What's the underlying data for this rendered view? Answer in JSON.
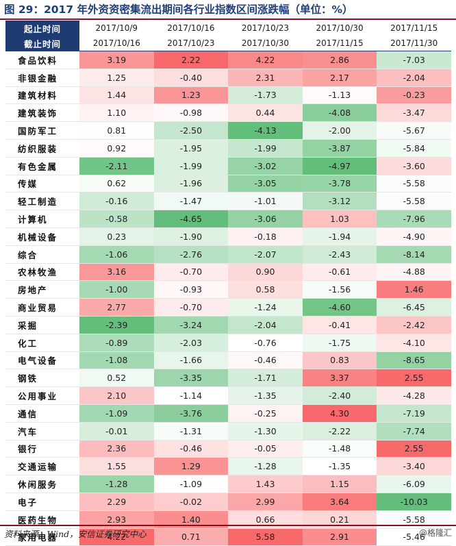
{
  "title": "图 29：2017 年外资资密集流出期间各行业指数区间涨跌幅（单位：%）",
  "header": {
    "start_label": "起止时间",
    "end_label": "截止时间",
    "periods": [
      {
        "start": "2017/10/9",
        "end": "2017/10/16"
      },
      {
        "start": "2017/10/16",
        "end": "2017/10/23"
      },
      {
        "start": "2017/10/23",
        "end": "2017/10/30"
      },
      {
        "start": "2017/10/30",
        "end": "2017/11/15"
      },
      {
        "start": "2017/11/15",
        "end": "2017/11/30"
      }
    ]
  },
  "rows": [
    {
      "name": "食品饮料",
      "values": [
        "3.19",
        "2.22",
        "4.22",
        "2.86",
        "-7.03"
      ]
    },
    {
      "name": "非银金融",
      "values": [
        "1.25",
        "-0.40",
        "2.31",
        "2.17",
        "-2.04"
      ]
    },
    {
      "name": "建筑材料",
      "values": [
        "1.44",
        "1.23",
        "-1.73",
        "-1.13",
        "-0.23"
      ]
    },
    {
      "name": "建筑装饰",
      "values": [
        "1.10",
        "-0.98",
        "0.44",
        "-4.08",
        "-3.47"
      ]
    },
    {
      "name": "国防军工",
      "values": [
        "0.81",
        "-2.50",
        "-4.13",
        "-2.00",
        "-5.67"
      ]
    },
    {
      "name": "纺织服装",
      "values": [
        "0.92",
        "-1.95",
        "-1.99",
        "-3.87",
        "-5.84"
      ]
    },
    {
      "name": "有色金属",
      "values": [
        "-2.11",
        "-1.99",
        "-3.02",
        "-4.97",
        "-3.60"
      ]
    },
    {
      "name": "传媒",
      "values": [
        "0.62",
        "-1.96",
        "-3.05",
        "-3.78",
        "-5.58"
      ]
    },
    {
      "name": "轻工制造",
      "values": [
        "-0.16",
        "-1.47",
        "-1.01",
        "-3.12",
        "-5.58"
      ]
    },
    {
      "name": "计算机",
      "values": [
        "-0.58",
        "-4.65",
        "-3.06",
        "1.03",
        "-7.96"
      ]
    },
    {
      "name": "机械设备",
      "values": [
        "0.23",
        "-1.90",
        "-0.18",
        "-1.94",
        "-4.90"
      ]
    },
    {
      "name": "综合",
      "values": [
        "-1.06",
        "-2.76",
        "-2.07",
        "-2.43",
        "-8.14"
      ]
    },
    {
      "name": "农林牧渔",
      "values": [
        "3.16",
        "-0.70",
        "0.90",
        "-0.61",
        "-4.88"
      ]
    },
    {
      "name": "房地产",
      "values": [
        "-1.00",
        "-0.93",
        "0.58",
        "-1.56",
        "1.46"
      ]
    },
    {
      "name": "商业贸易",
      "values": [
        "2.77",
        "-0.70",
        "-1.24",
        "-4.60",
        "-6.45"
      ]
    },
    {
      "name": "采掘",
      "values": [
        "-2.39",
        "-3.24",
        "-2.04",
        "-0.41",
        "-2.42"
      ]
    },
    {
      "name": "化工",
      "values": [
        "-0.89",
        "-2.03",
        "-0.76",
        "-1.75",
        "-4.10"
      ]
    },
    {
      "name": "电气设备",
      "values": [
        "-1.08",
        "-1.66",
        "-0.46",
        "0.83",
        "-8.65"
      ]
    },
    {
      "name": "钢铁",
      "values": [
        "0.52",
        "-3.35",
        "-1.71",
        "3.37",
        "2.55"
      ]
    },
    {
      "name": "公用事业",
      "values": [
        "2.10",
        "-1.14",
        "-1.35",
        "-2.40",
        "-4.28"
      ]
    },
    {
      "name": "通信",
      "values": [
        "-1.09",
        "-3.76",
        "-0.25",
        "4.30",
        "-7.19"
      ]
    },
    {
      "name": "汽车",
      "values": [
        "-0.01",
        "-1.31",
        "-1.30",
        "-2.22",
        "-7.74"
      ]
    },
    {
      "name": "银行",
      "values": [
        "2.36",
        "-0.46",
        "-0.05",
        "-1.48",
        "2.55"
      ]
    },
    {
      "name": "交通运输",
      "values": [
        "1.55",
        "1.29",
        "-1.28",
        "-1.35",
        "-3.40"
      ]
    },
    {
      "name": "休闲服务",
      "values": [
        "-1.28",
        "-1.09",
        "1.43",
        "1.15",
        "-6.09"
      ]
    },
    {
      "name": "电子",
      "values": [
        "2.29",
        "-0.02",
        "2.99",
        "3.64",
        "-10.03"
      ]
    },
    {
      "name": "医药生物",
      "values": [
        "2.93",
        "1.40",
        "0.66",
        "0.21",
        "-5.58"
      ]
    },
    {
      "name": "家用电器",
      "values": [
        "4.22",
        "0.71",
        "5.58",
        "2.91",
        "-5.46"
      ]
    }
  ],
  "footer": {
    "source": "资料来源：Wind，安信证券研究中心",
    "watermark": "@格隆汇"
  },
  "colors": {
    "header_band": "#1f3c72",
    "positive": "#f8696b",
    "neutral": "#ffffff",
    "negative": "#63be7b",
    "rule": "#8b0f1e"
  }
}
